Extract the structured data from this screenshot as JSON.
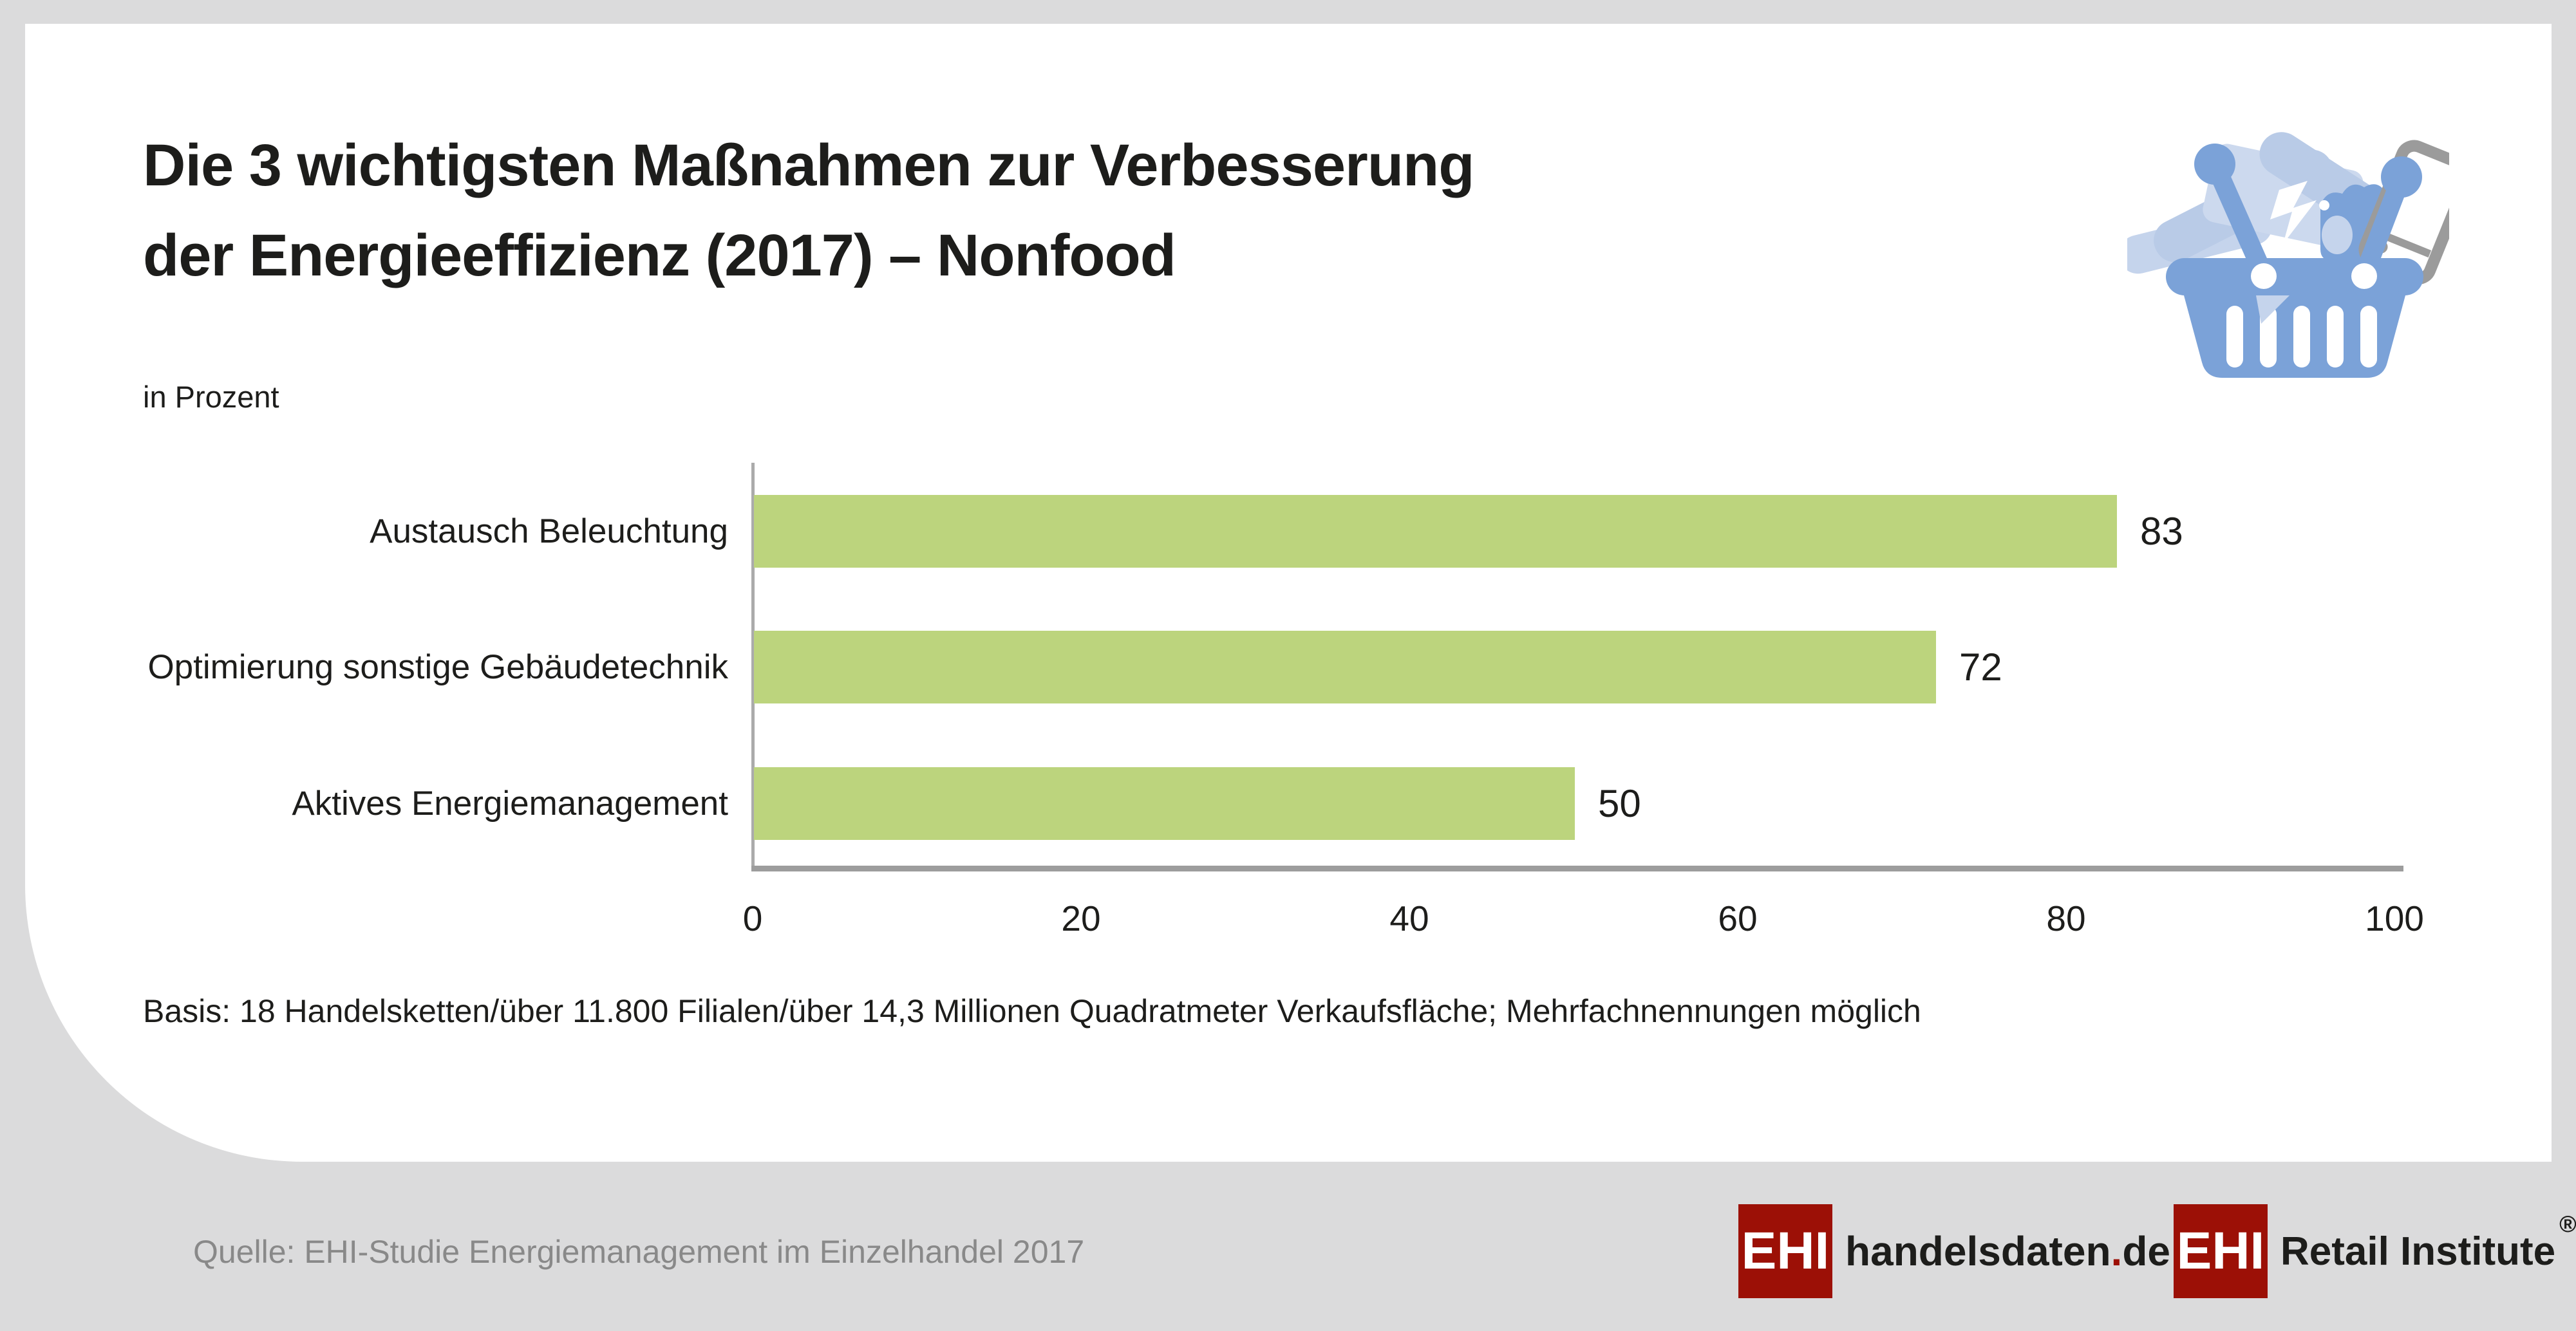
{
  "colors": {
    "bar_green": "#bcd47d",
    "ehi_red": "#9c1006",
    "axis_gray": "#9d9d9d",
    "source_gray": "#898989",
    "basket_blue": "#7ba2d8",
    "basket_light_blue": "#c5d4ec",
    "phone_gray": "#9b9b9b",
    "background_gray": "#dbdbdc"
  },
  "header": {
    "title_line1": "Die 3 wichtigsten Maßnahmen zur Verbesserung",
    "title_line2": "der Energieeffizienz (2017) – Nonfood",
    "unit_label": "in Prozent"
  },
  "chart_data": {
    "type": "bar",
    "orientation": "horizontal",
    "title": "Die 3 wichtigsten Maßnahmen zur Verbesserung der Energieeffizienz (2017) – Nonfood",
    "subtitle": "in Prozent",
    "categories": [
      "Austausch Beleuchtung",
      "Optimierung sonstige Gebäudetechnik",
      "Aktives Energiemanagement"
    ],
    "values": [
      83,
      72,
      50
    ],
    "xlabel": "",
    "ylabel": "",
    "xlim": [
      0,
      100
    ],
    "x_ticks": [
      0,
      20,
      40,
      60,
      80,
      100
    ],
    "grid": false,
    "legend": false,
    "bar_color": "#bcd47d"
  },
  "basis_note": "Basis: 18 Handelsketten/über 11.800 Filialen/über 14,3 Millionen Quadratmeter Verkaufsfläche; Mehrfachnennungen möglich",
  "footer": {
    "source": "Quelle: EHI-Studie Energiemanagement im Einzelhandel 2017",
    "logos": [
      {
        "box": "EHI",
        "name": "handelsdaten",
        "dot": ".",
        "tld": "de"
      },
      {
        "box": "EHI",
        "name": "Retail Institute",
        "registered": "®"
      }
    ]
  },
  "icons": {
    "basket": "shopping-basket-icon"
  }
}
